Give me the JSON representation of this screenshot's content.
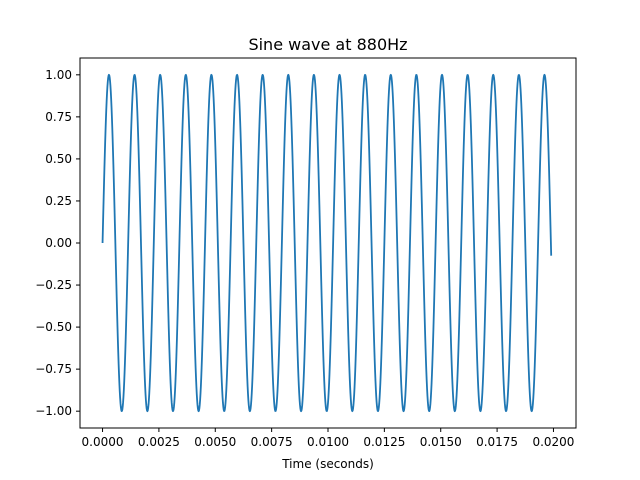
{
  "chart_data": {
    "type": "line",
    "title": "Sine wave at 880Hz",
    "xlabel": "Time (seconds)",
    "ylabel": "",
    "xlim": [
      -0.001,
      0.021
    ],
    "ylim": [
      -1.1,
      1.1
    ],
    "grid": false,
    "series": [
      {
        "frequency_hz": 880,
        "amplitude": 1.0,
        "x_start": 0.0,
        "x_end": 0.0199,
        "color": "#1f77b4",
        "points": [
          [
            0.0,
            0.0
          ],
          [
            0.000284,
            0.98
          ],
          [
            0.000568,
            0.0
          ],
          [
            0.000852,
            -0.98
          ],
          [
            0.001136,
            0.0
          ],
          [
            0.0199,
            -0.31
          ]
        ]
      }
    ],
    "xticks": [
      {
        "value": 0.0,
        "label": "0.0000"
      },
      {
        "value": 0.0025,
        "label": "0.0025"
      },
      {
        "value": 0.005,
        "label": "0.0050"
      },
      {
        "value": 0.0075,
        "label": "0.0075"
      },
      {
        "value": 0.01,
        "label": "0.0100"
      },
      {
        "value": 0.0125,
        "label": "0.0125"
      },
      {
        "value": 0.015,
        "label": "0.0150"
      },
      {
        "value": 0.0175,
        "label": "0.0175"
      },
      {
        "value": 0.02,
        "label": "0.0200"
      }
    ],
    "yticks": [
      {
        "value": 1.0,
        "label": "1.00"
      },
      {
        "value": 0.75,
        "label": "0.75"
      },
      {
        "value": 0.5,
        "label": "0.50"
      },
      {
        "value": 0.25,
        "label": "0.25"
      },
      {
        "value": 0.0,
        "label": "0.00"
      },
      {
        "value": -0.25,
        "label": "−0.25"
      },
      {
        "value": -0.5,
        "label": "−0.50"
      },
      {
        "value": -0.75,
        "label": "−0.75"
      },
      {
        "value": -1.0,
        "label": "−1.00"
      }
    ]
  }
}
